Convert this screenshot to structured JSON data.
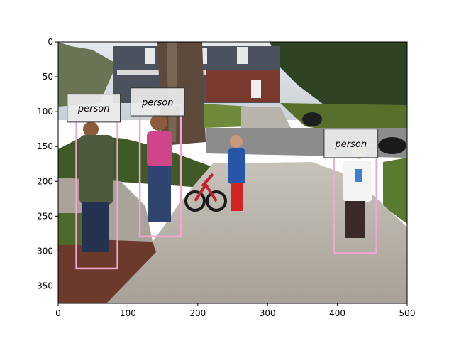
{
  "figure": {
    "x_ticks": [
      "0",
      "100",
      "200",
      "300",
      "400",
      "500"
    ],
    "y_ticks": [
      "0",
      "50",
      "100",
      "150",
      "200",
      "250",
      "300",
      "350"
    ],
    "x_range": [
      0,
      500
    ],
    "y_range": [
      375,
      0
    ],
    "image_extent": {
      "width": 500,
      "height": 375
    }
  },
  "photo": {
    "description_tag": "outdoor-driveway-scene",
    "colors": {
      "sky": "#d8dde2",
      "house": "#4a4f5a",
      "trees": "#2f4a25",
      "lawn": "#5a7a30",
      "driveway": "#b9b4aa",
      "road": "#8e8e8e",
      "brick": "#6b3a2c"
    }
  },
  "annotations": {
    "box_color": "#f3a6d4",
    "label_bg": "#ebebeb",
    "label_border": "#333333",
    "items": [
      {
        "label": "person",
        "x0": 26,
        "y0": 98,
        "x1": 85,
        "y1": 325
      },
      {
        "label": "person",
        "x0": 117,
        "y0": 91,
        "x1": 176,
        "y1": 279
      },
      {
        "label": "person",
        "x0": 395,
        "y0": 148,
        "x1": 456,
        "y1": 303
      }
    ],
    "label_boxes": [
      {
        "x0": 13,
        "y0": 75,
        "x1": 89,
        "y1": 115
      },
      {
        "x0": 104,
        "y0": 66,
        "x1": 181,
        "y1": 106
      },
      {
        "x0": 381,
        "y0": 125,
        "x1": 458,
        "y1": 166
      }
    ]
  }
}
